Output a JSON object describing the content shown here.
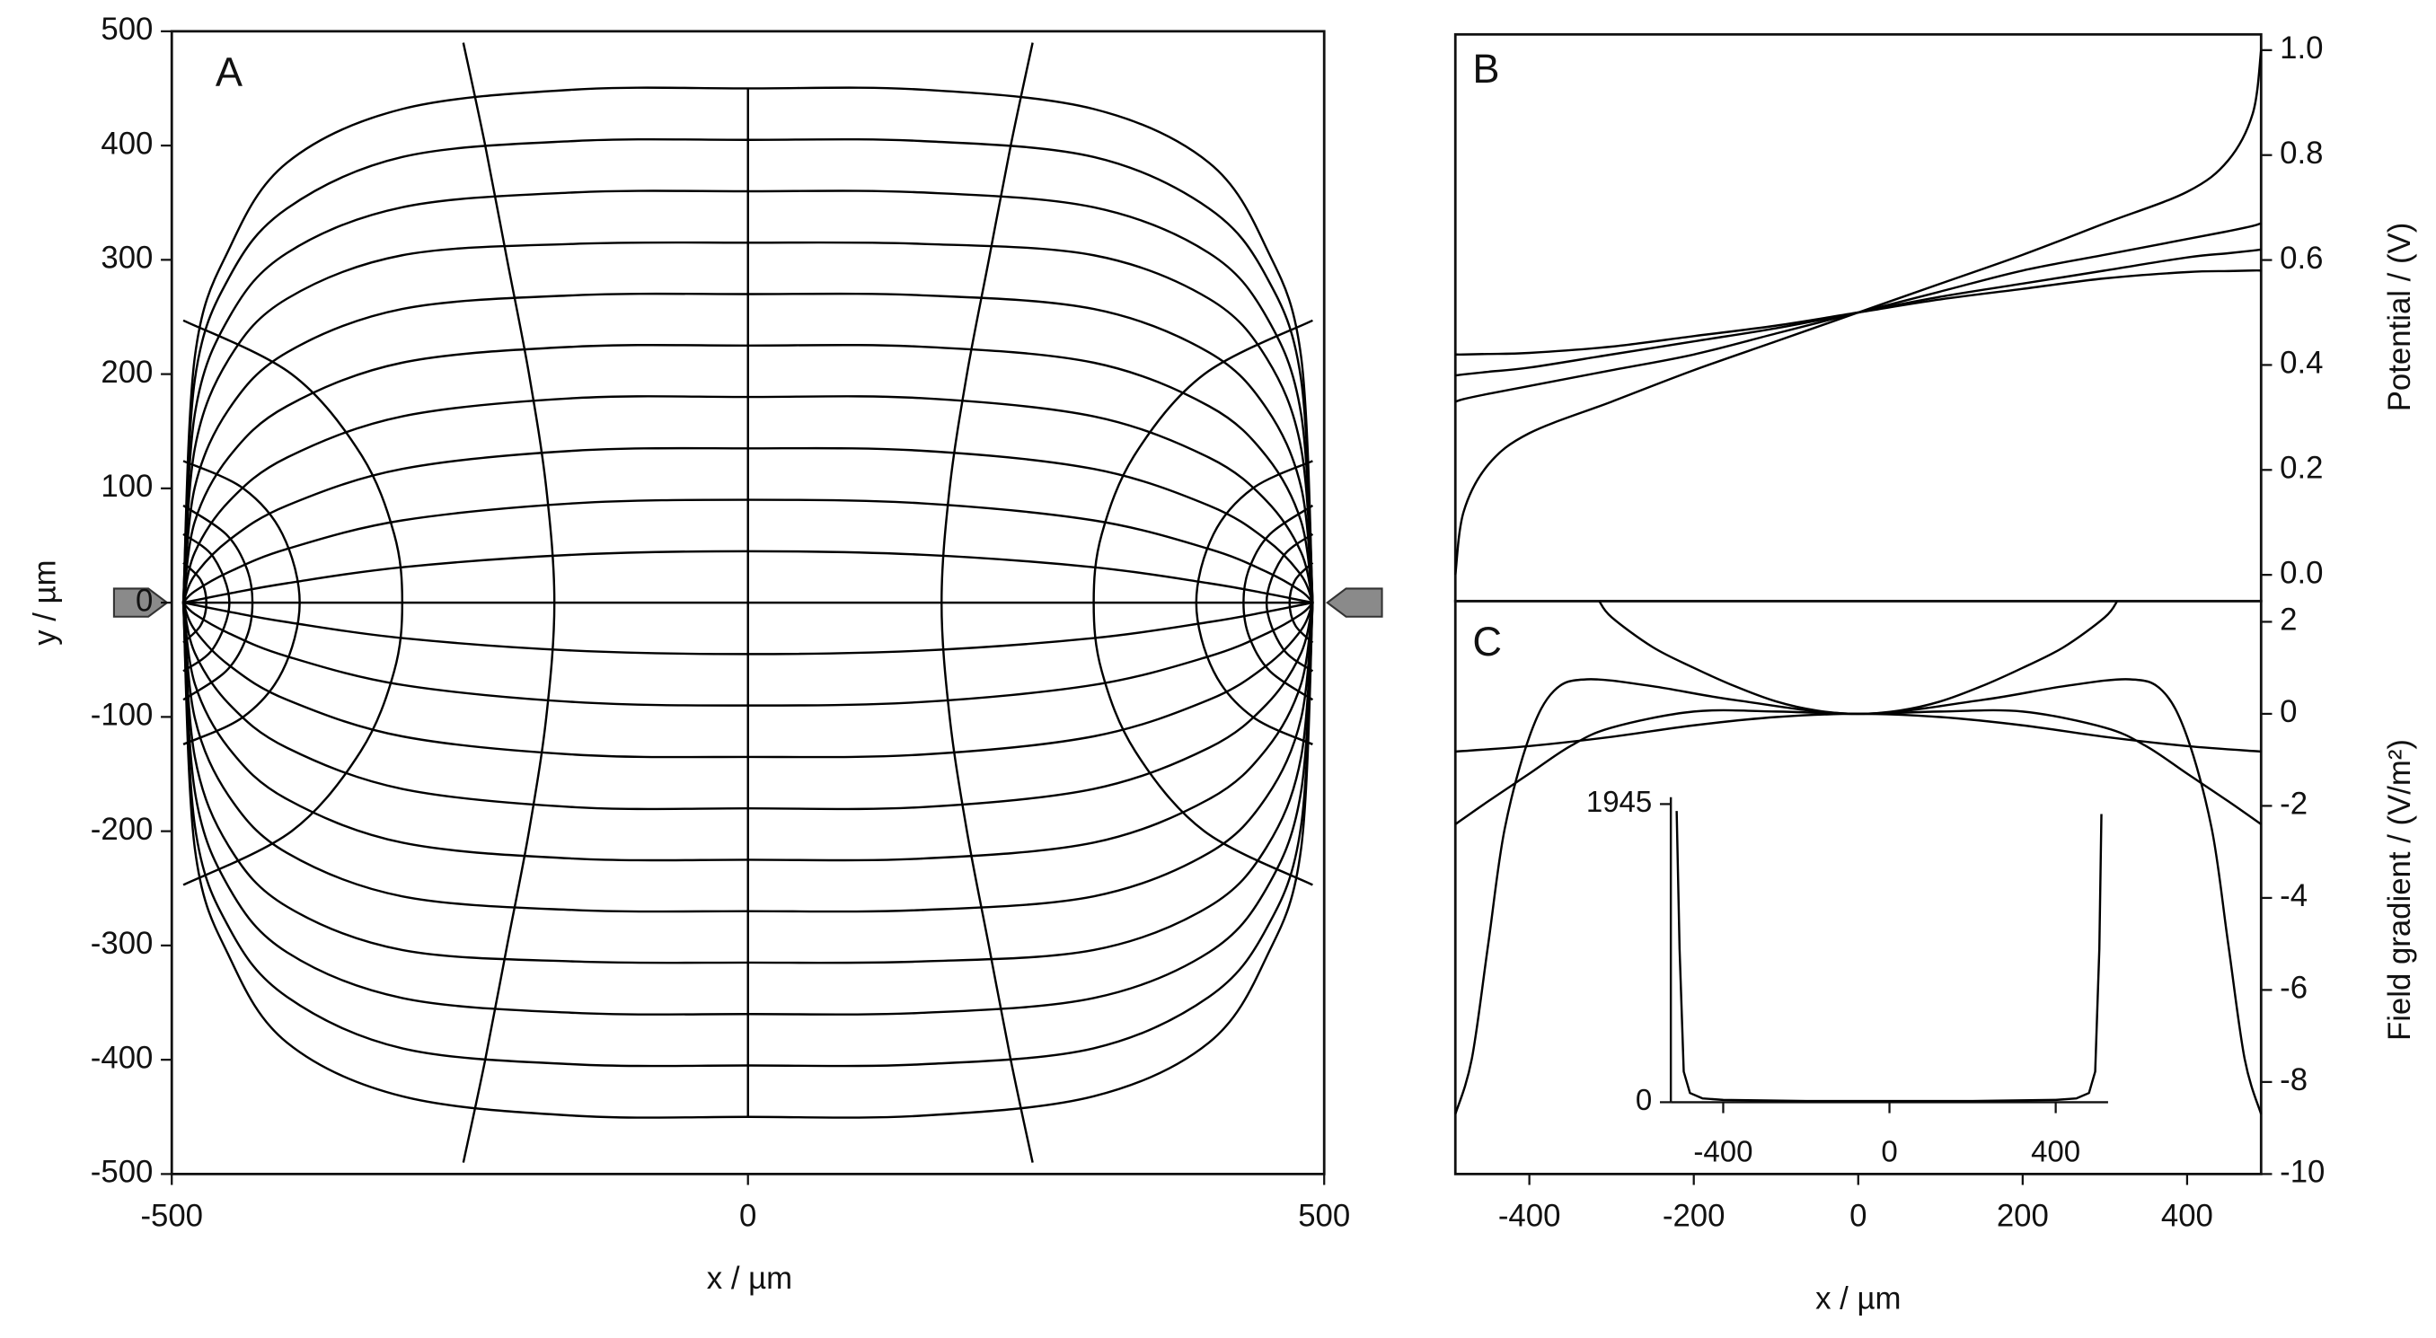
{
  "chart_data": [
    {
      "type": "line",
      "panel_label": "A",
      "xlabel": "x / µm",
      "ylabel": "y / µm",
      "xlim": [
        -500,
        500
      ],
      "ylim": [
        -500,
        500
      ],
      "xticks": [
        -500,
        0,
        500
      ],
      "yticks": [
        -500,
        -400,
        -300,
        -200,
        -100,
        0,
        100,
        200,
        300,
        400,
        500
      ],
      "frame": "box",
      "color": "#000000",
      "x": [
        -490,
        -480,
        -450,
        -400,
        -300,
        -150,
        0,
        150,
        300,
        400,
        450,
        480,
        490
      ],
      "series": [
        {
          "values": [
            0,
            2,
            8,
            17,
            31,
            42,
            45,
            42,
            31,
            17,
            8,
            2,
            0
          ]
        },
        {
          "values": [
            0,
            10,
            27,
            47,
            72,
            87,
            90,
            87,
            72,
            47,
            27,
            10,
            0
          ]
        },
        {
          "values": [
            0,
            24,
            55,
            85,
            117,
            133,
            135,
            133,
            117,
            85,
            55,
            24,
            0
          ]
        },
        {
          "values": [
            0,
            44,
            89,
            127,
            163,
            179,
            180,
            179,
            163,
            127,
            89,
            44,
            0
          ]
        },
        {
          "values": [
            0,
            71,
            128,
            172,
            210,
            224,
            225,
            224,
            210,
            172,
            128,
            71,
            0
          ]
        },
        {
          "values": [
            0,
            101,
            170,
            219,
            257,
            269,
            270,
            269,
            257,
            219,
            170,
            101,
            0
          ]
        },
        {
          "values": [
            0,
            135,
            214,
            266,
            304,
            314,
            315,
            314,
            304,
            266,
            214,
            135,
            0
          ]
        },
        {
          "values": [
            0,
            165,
            250,
            306,
            346,
            359,
            360,
            359,
            346,
            306,
            250,
            165,
            0
          ]
        },
        {
          "values": [
            0,
            195,
            285,
            345,
            390,
            404,
            405,
            404,
            390,
            345,
            285,
            195,
            0
          ]
        },
        {
          "values": [
            0,
            215,
            310,
            385,
            432,
            449,
            450,
            449,
            432,
            385,
            310,
            215,
            0
          ]
        },
        {
          "values": [
            0,
            -2,
            -8,
            -17,
            -31,
            -42,
            -45,
            -42,
            -31,
            -17,
            -8,
            -2,
            0
          ]
        },
        {
          "values": [
            0,
            -10,
            -27,
            -47,
            -72,
            -87,
            -90,
            -87,
            -72,
            -47,
            -27,
            -10,
            0
          ]
        },
        {
          "values": [
            0,
            -24,
            -55,
            -85,
            -117,
            -133,
            -135,
            -133,
            -117,
            -85,
            -55,
            -24,
            0
          ]
        },
        {
          "values": [
            0,
            -44,
            -89,
            -127,
            -163,
            -179,
            -180,
            -179,
            -163,
            -127,
            -89,
            -44,
            0
          ]
        },
        {
          "values": [
            0,
            -71,
            -128,
            -172,
            -210,
            -224,
            -225,
            -224,
            -210,
            -172,
            -128,
            -71,
            0
          ]
        },
        {
          "values": [
            0,
            -101,
            -170,
            -219,
            -257,
            -269,
            -270,
            -269,
            -257,
            -219,
            -170,
            -101,
            0
          ]
        },
        {
          "values": [
            0,
            -135,
            -214,
            -266,
            -304,
            -314,
            -315,
            -314,
            -304,
            -266,
            -214,
            -135,
            0
          ]
        },
        {
          "values": [
            0,
            -165,
            -250,
            -306,
            -346,
            -359,
            -360,
            -359,
            -346,
            -306,
            -250,
            -165,
            0
          ]
        },
        {
          "values": [
            0,
            -195,
            -285,
            -345,
            -390,
            -404,
            -405,
            -404,
            -390,
            -345,
            -285,
            -195,
            0
          ]
        },
        {
          "values": [
            0,
            -215,
            -310,
            -385,
            -432,
            -449,
            -450,
            -449,
            -432,
            -385,
            -310,
            -215,
            0
          ]
        },
        {
          "values": [
            0,
            0,
            0,
            0,
            0,
            0,
            0,
            0,
            0,
            0,
            0,
            0,
            0
          ]
        },
        {
          "x": [
            -490,
            -396,
            -336,
            -307,
            -300,
            -307,
            -336,
            -396,
            -490
          ],
          "values": [
            247,
            200,
            130,
            60,
            0,
            -60,
            -130,
            -200,
            -247
          ]
        },
        {
          "x": [
            490,
            396,
            336,
            307,
            300,
            307,
            336,
            396,
            490
          ],
          "values": [
            247,
            200,
            130,
            60,
            0,
            -60,
            -130,
            -200,
            -247
          ]
        },
        {
          "x": [
            -490,
            -438,
            -404,
            -389,
            -404,
            -438,
            -490
          ],
          "values": [
            124,
            100,
            60,
            0,
            -60,
            -100,
            -124
          ]
        },
        {
          "x": [
            490,
            438,
            404,
            389,
            404,
            438,
            490
          ],
          "values": [
            124,
            100,
            60,
            0,
            -60,
            -100,
            -124
          ]
        },
        {
          "x": [
            -490,
            -453,
            -435,
            -430,
            -435,
            -453,
            -490
          ],
          "values": [
            85,
            60,
            30,
            0,
            -30,
            -60,
            -85
          ]
        },
        {
          "x": [
            490,
            453,
            435,
            430,
            435,
            453,
            490
          ],
          "values": [
            85,
            60,
            30,
            0,
            -30,
            -60,
            -85
          ]
        },
        {
          "x": [
            -490,
            -464,
            -450,
            -464,
            -490
          ],
          "values": [
            60,
            40,
            0,
            -40,
            -60
          ]
        },
        {
          "x": [
            490,
            464,
            450,
            464,
            490
          ],
          "values": [
            60,
            40,
            0,
            -40,
            -60
          ]
        },
        {
          "x": [
            -490,
            -475,
            -470,
            -475,
            -490
          ],
          "values": [
            35,
            20,
            0,
            -20,
            -35
          ]
        },
        {
          "x": [
            490,
            475,
            470,
            475,
            490
          ],
          "values": [
            35,
            20,
            0,
            -20,
            -35
          ]
        },
        {
          "x": [
            -247,
            -228,
            -209,
            -190,
            -175,
            -168,
            -175,
            -190,
            -209,
            -228,
            -247
          ],
          "values": [
            490,
            400,
            300,
            200,
            100,
            0,
            -100,
            -200,
            -300,
            -400,
            -490
          ]
        },
        {
          "x": [
            247,
            228,
            209,
            190,
            175,
            168,
            175,
            190,
            209,
            228,
            247
          ],
          "values": [
            490,
            400,
            300,
            200,
            100,
            0,
            -100,
            -200,
            -300,
            -400,
            -490
          ]
        },
        {
          "x": [
            0,
            0
          ],
          "values": [
            450,
            -450
          ]
        }
      ]
    },
    {
      "type": "line",
      "panel_label": "B",
      "ylabel": "Potential / (V)",
      "y_axis_side": "right",
      "xlim": [
        -490,
        490
      ],
      "ylim": [
        -0.05,
        1.03
      ],
      "yticks": [
        {
          "value": 0,
          "label": "0.0"
        },
        0.2,
        0.4,
        0.6,
        0.8,
        {
          "value": 1,
          "label": "1.0"
        }
      ],
      "frame": "box",
      "color": "#000000",
      "x": [
        -490,
        -480,
        -450,
        -400,
        -300,
        -200,
        -100,
        0,
        100,
        200,
        300,
        400,
        450,
        480,
        490
      ],
      "series": [
        {
          "values": [
            0.0,
            0.12,
            0.21,
            0.27,
            0.33,
            0.39,
            0.445,
            0.5,
            0.555,
            0.61,
            0.67,
            0.73,
            0.79,
            0.88,
            1.0
          ]
        },
        {
          "values": [
            0.33,
            0.335,
            0.345,
            0.36,
            0.39,
            0.42,
            0.46,
            0.5,
            0.54,
            0.58,
            0.61,
            0.64,
            0.655,
            0.665,
            0.67
          ]
        },
        {
          "values": [
            0.38,
            0.382,
            0.387,
            0.395,
            0.42,
            0.445,
            0.47,
            0.5,
            0.53,
            0.555,
            0.58,
            0.605,
            0.613,
            0.618,
            0.62
          ]
        },
        {
          "values": [
            0.42,
            0.42,
            0.421,
            0.423,
            0.435,
            0.455,
            0.475,
            0.5,
            0.525,
            0.545,
            0.565,
            0.577,
            0.579,
            0.58,
            0.58
          ]
        }
      ]
    },
    {
      "type": "line",
      "panel_label": "C",
      "xlabel": "x / µm",
      "ylabel": "Field gradient / (V/m²)",
      "y_axis_side": "right",
      "xlim": [
        -490,
        490
      ],
      "ylim": [
        -10,
        2.45
      ],
      "xticks": [
        -400,
        -200,
        0,
        200,
        400
      ],
      "yticks": [
        -10,
        -8,
        -6,
        -4,
        -2,
        0,
        2
      ],
      "frame": "box",
      "color": "#000000",
      "series": [
        {
          "x": [
            -315,
            -300,
            -250,
            -200,
            -150,
            -100,
            -50,
            0,
            50,
            100,
            150,
            200,
            250,
            300,
            315
          ],
          "values": [
            2.45,
            2.1,
            1.45,
            1.0,
            0.6,
            0.27,
            0.07,
            0,
            0.07,
            0.27,
            0.6,
            1.0,
            1.45,
            2.1,
            2.45
          ]
        },
        {
          "x": [
            -490,
            -450,
            -400,
            -350,
            -300,
            -200,
            -100,
            0,
            100,
            200,
            300,
            350,
            400,
            450,
            490
          ],
          "values": [
            -2.4,
            -1.9,
            -1.3,
            -0.7,
            -0.3,
            0.05,
            0.05,
            0,
            0.05,
            0.05,
            -0.3,
            -0.7,
            -1.3,
            -1.9,
            -2.4
          ]
        },
        {
          "x": [
            -490,
            -470,
            -450,
            -430,
            -400,
            -370,
            -330,
            -250,
            -150,
            0,
            150,
            250,
            330,
            370,
            400,
            430,
            450,
            470,
            490
          ],
          "values": [
            -8.7,
            -7.5,
            -5.0,
            -2.5,
            -0.5,
            0.5,
            0.75,
            0.6,
            0.3,
            0,
            0.3,
            0.6,
            0.75,
            0.5,
            -0.5,
            -2.5,
            -5.0,
            -7.5,
            -8.7
          ]
        },
        {
          "x": [
            -490,
            -400,
            -300,
            -200,
            -100,
            0,
            100,
            200,
            300,
            400,
            490
          ],
          "values": [
            -0.82,
            -0.7,
            -0.5,
            -0.25,
            -0.07,
            0,
            -0.07,
            -0.25,
            -0.5,
            -0.7,
            -0.82
          ]
        }
      ]
    },
    {
      "type": "line",
      "xlim": [
        -526,
        526
      ],
      "ylim": [
        0,
        1990
      ],
      "xticks": [
        -400,
        0,
        400
      ],
      "yticks": [
        0,
        1945
      ],
      "frame": "axes",
      "color": "#000000",
      "series": [
        {
          "x": [
            -512,
            -505,
            -495,
            -480,
            -450,
            -400,
            -200,
            0,
            200,
            400,
            450,
            480,
            495,
            505,
            510
          ],
          "values": [
            1900,
            1000,
            200,
            60,
            25,
            15,
            8,
            8,
            8,
            15,
            25,
            60,
            200,
            1000,
            1880
          ]
        }
      ]
    }
  ]
}
